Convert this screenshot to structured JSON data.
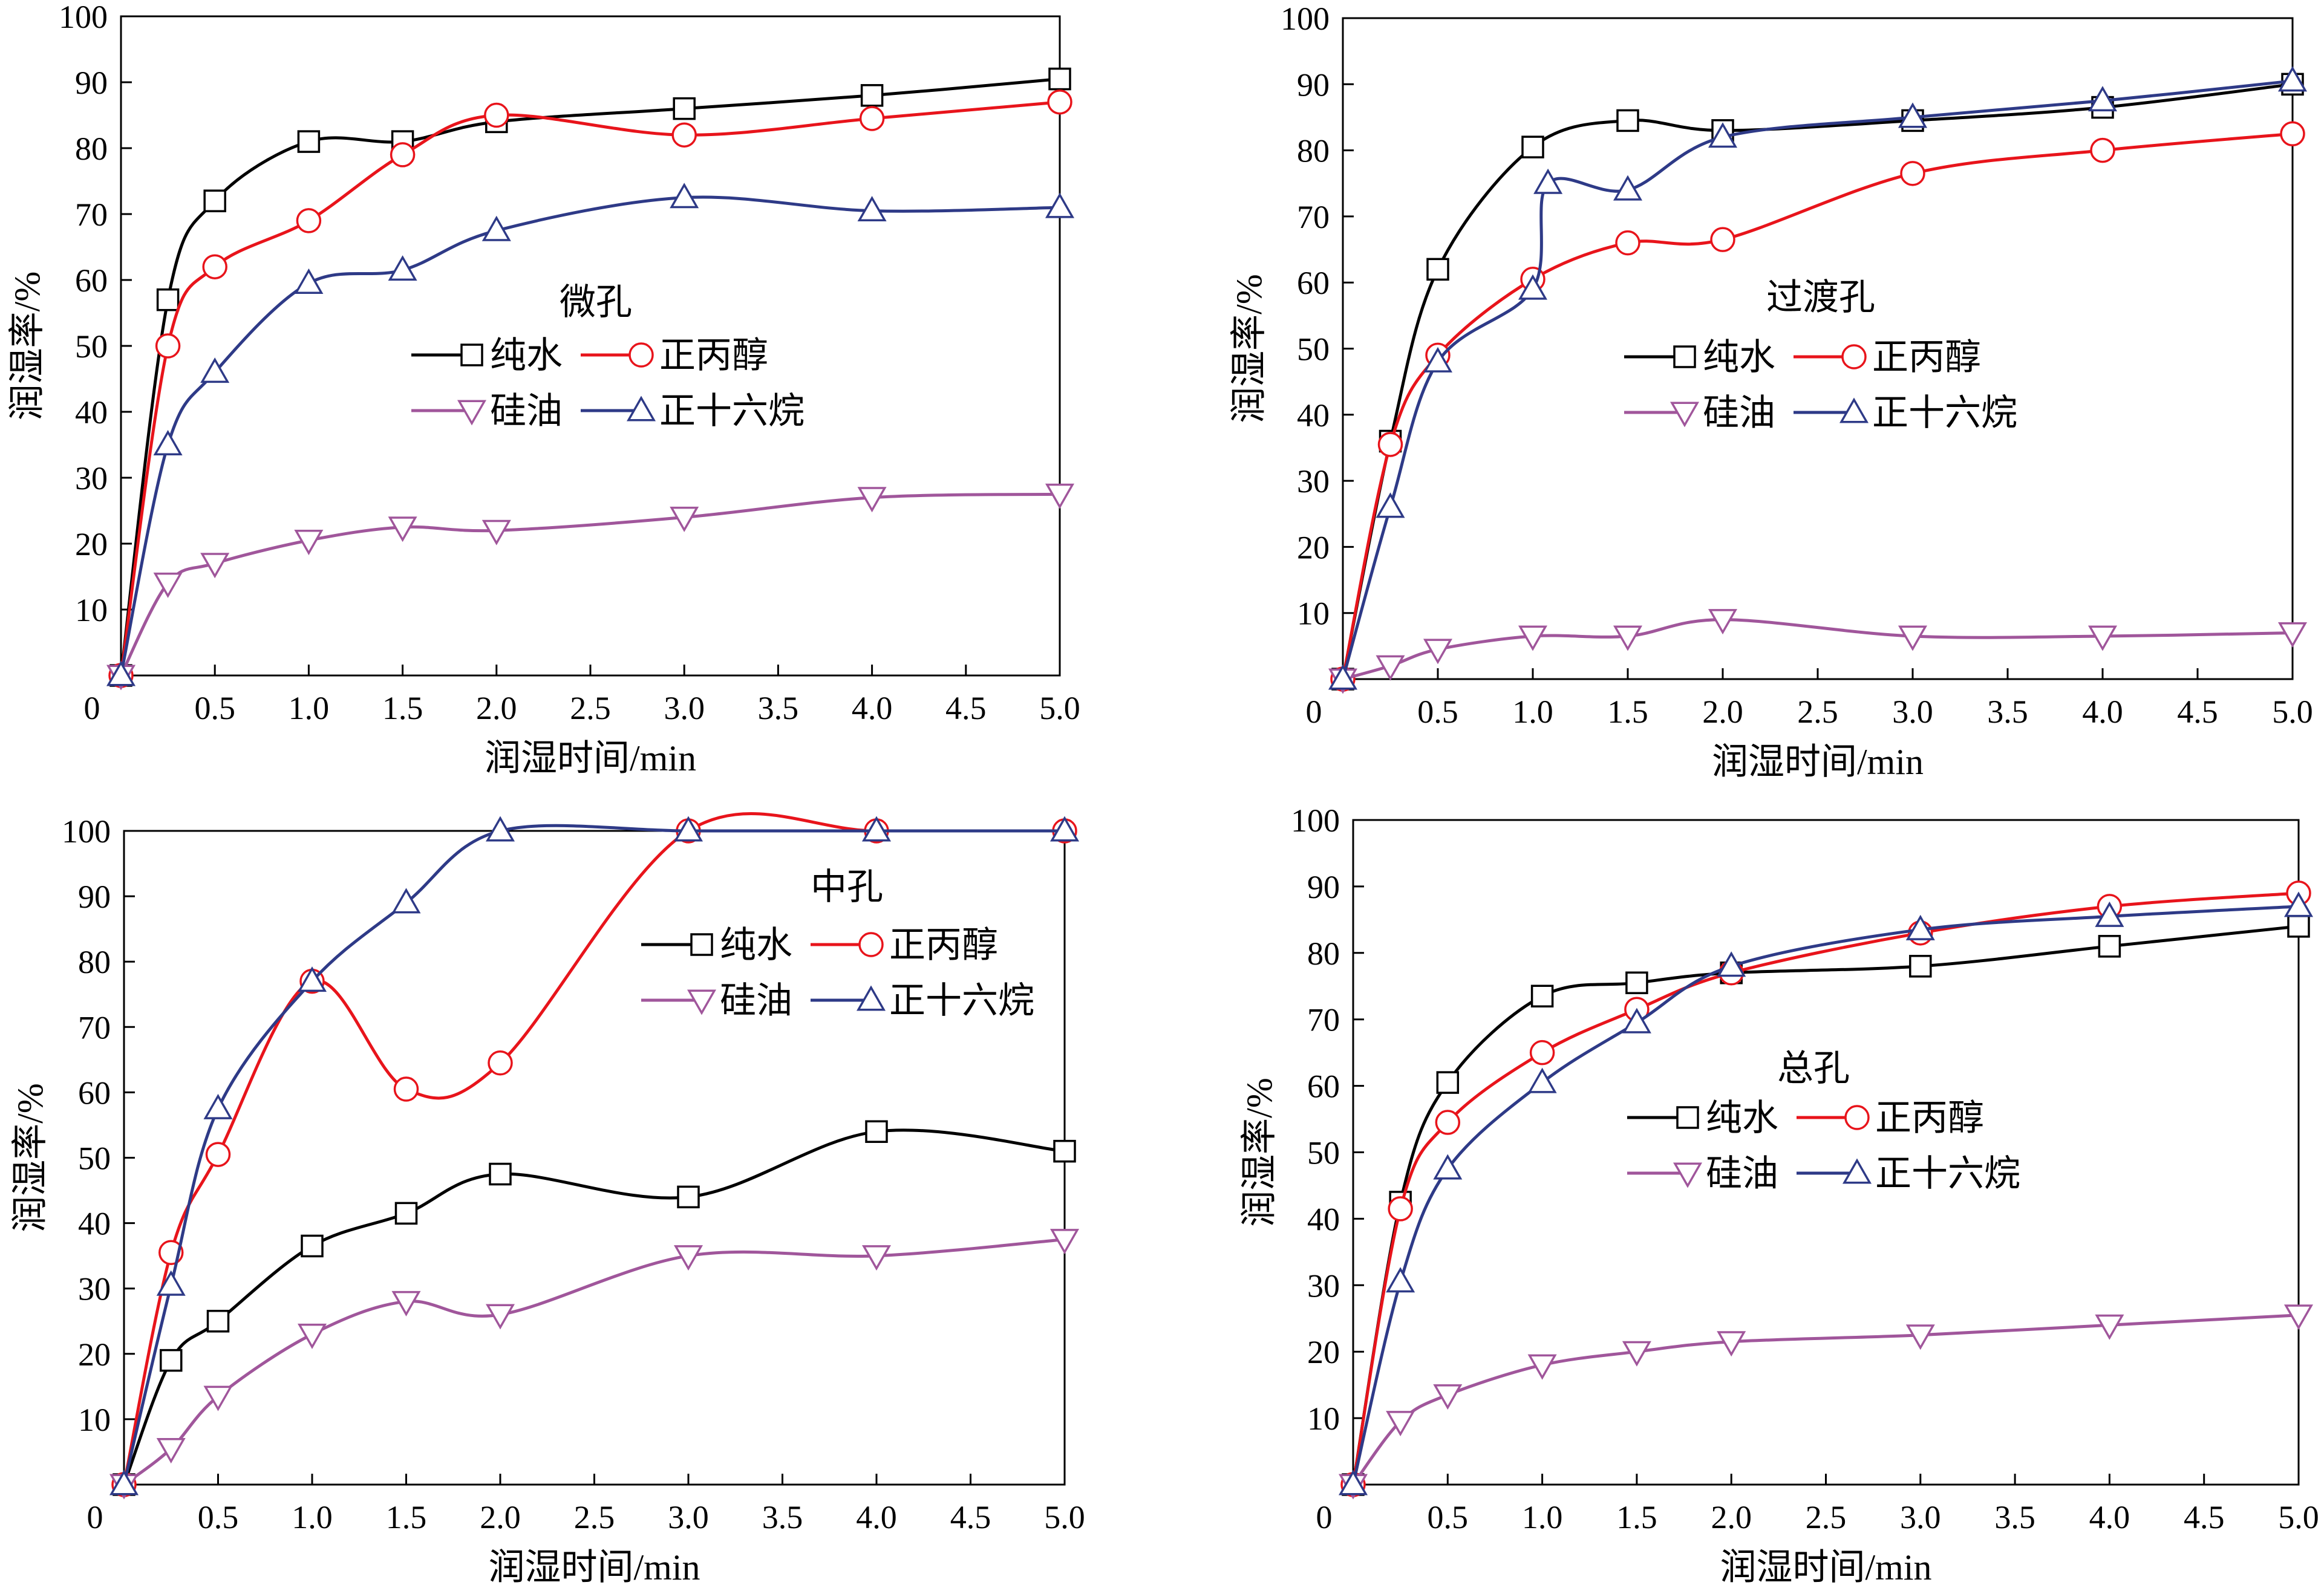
{
  "chart_data": [
    {
      "type": "line",
      "title": "微孔",
      "xlabel": "润湿时间/min",
      "ylabel": "润湿率/%",
      "xlim": [
        0,
        5.0
      ],
      "ylim": [
        0,
        100
      ],
      "xticks": [
        0,
        0.5,
        1.0,
        1.5,
        2.0,
        2.5,
        3.0,
        3.5,
        4.0,
        4.5,
        5.0
      ],
      "xtick_labels": [
        "0",
        "0.5",
        "1.0",
        "1.5",
        "2.0",
        "2.5",
        "3.0",
        "3.5",
        "4.0",
        "4.5",
        "5.0"
      ],
      "yticks": [
        10,
        20,
        30,
        40,
        50,
        60,
        70,
        80,
        90,
        100
      ],
      "ytick_labels": [
        "10",
        "20",
        "30",
        "40",
        "50",
        "60",
        "70",
        "80",
        "90",
        "100"
      ],
      "legend": "center",
      "grid": false,
      "x": [
        0,
        0.25,
        0.5,
        1.0,
        1.5,
        2.0,
        3.0,
        4.0,
        5.0
      ],
      "series": [
        {
          "name": "纯水",
          "marker": "square",
          "color": "#000000",
          "values": [
            0,
            57,
            72,
            81,
            81,
            84,
            86,
            88,
            90.5
          ]
        },
        {
          "name": "正丙醇",
          "marker": "circle",
          "color": "#e8141b",
          "values": [
            0,
            50,
            62,
            69,
            79,
            85,
            82,
            84.5,
            87
          ]
        },
        {
          "name": "硅油",
          "marker": "triangle-down",
          "color": "#a0569b",
          "values": [
            0,
            14,
            17,
            20.5,
            22.5,
            22,
            24,
            27,
            27.5
          ]
        },
        {
          "name": "正十六烷",
          "marker": "triangle-up",
          "color": "#2e3a87",
          "values": [
            0,
            35,
            46,
            59.5,
            61.5,
            67.5,
            72.5,
            70.5,
            71
          ]
        }
      ]
    },
    {
      "type": "line",
      "title": "过渡孔",
      "xlabel": "润湿时间/min",
      "ylabel": "润湿率/%",
      "xlim": [
        0,
        5.0
      ],
      "ylim": [
        0,
        100
      ],
      "xticks": [
        0,
        0.5,
        1.0,
        1.5,
        2.0,
        2.5,
        3.0,
        3.5,
        4.0,
        4.5,
        5.0
      ],
      "xtick_labels": [
        "0",
        "0.5",
        "1.0",
        "1.5",
        "2.0",
        "2.5",
        "3.0",
        "3.5",
        "4.0",
        "4.5",
        "5.0"
      ],
      "yticks": [
        10,
        20,
        30,
        40,
        50,
        60,
        70,
        80,
        90,
        100
      ],
      "ytick_labels": [
        "10",
        "20",
        "30",
        "40",
        "50",
        "60",
        "70",
        "80",
        "90",
        "100"
      ],
      "legend": "center",
      "grid": false,
      "x": [
        0,
        0.25,
        0.5,
        1.0,
        1.5,
        2.0,
        3.0,
        4.0,
        5.0
      ],
      "series": [
        {
          "name": "纯水",
          "marker": "square",
          "color": "#000000",
          "values": [
            0,
            36,
            62,
            80.5,
            84.5,
            83,
            84.5,
            86.5,
            90
          ]
        },
        {
          "name": "正丙醇",
          "marker": "circle",
          "color": "#e8141b",
          "values": [
            0,
            35.5,
            49,
            60.5,
            66,
            66.5,
            76.5,
            80,
            82.5
          ]
        },
        {
          "name": "硅油",
          "marker": "triangle-down",
          "color": "#a0569b",
          "values": [
            0,
            2,
            4.5,
            6.5,
            6.5,
            9,
            6.5,
            6.5,
            7
          ]
        },
        {
          "name": "正十六烷",
          "marker": "triangle-up",
          "color": "#2e3a87",
          "x": [
            0,
            0.25,
            0.5,
            1.0,
            1.08,
            1.5,
            2.0,
            3.0,
            4.0,
            5.0
          ],
          "values": [
            0,
            26,
            48,
            59,
            75,
            74,
            82,
            85,
            87.5,
            90.5
          ]
        }
      ]
    },
    {
      "type": "line",
      "title": "中孔",
      "xlabel": "润湿时间/min",
      "ylabel": "润湿率/%",
      "xlim": [
        0,
        5.0
      ],
      "ylim": [
        0,
        100
      ],
      "xticks": [
        0,
        0.5,
        1.0,
        1.5,
        2.0,
        2.5,
        3.0,
        3.5,
        4.0,
        4.5,
        5.0
      ],
      "xtick_labels": [
        "0",
        "0.5",
        "1.0",
        "1.5",
        "2.0",
        "2.5",
        "3.0",
        "3.5",
        "4.0",
        "4.5",
        "5.0"
      ],
      "yticks": [
        10,
        20,
        30,
        40,
        50,
        60,
        70,
        80,
        90,
        100
      ],
      "ytick_labels": [
        "10",
        "20",
        "30",
        "40",
        "50",
        "60",
        "70",
        "80",
        "90",
        "100"
      ],
      "legend": "top-right",
      "grid": false,
      "x": [
        0,
        0.25,
        0.5,
        1.0,
        1.5,
        2.0,
        3.0,
        4.0,
        5.0
      ],
      "series": [
        {
          "name": "纯水",
          "marker": "square",
          "color": "#000000",
          "values": [
            0,
            19,
            25,
            36.5,
            41.5,
            47.5,
            44,
            54,
            51
          ]
        },
        {
          "name": "正丙醇",
          "marker": "circle",
          "color": "#e8141b",
          "values": [
            0,
            35.5,
            50.5,
            77,
            60.5,
            64.5,
            100,
            100,
            100
          ]
        },
        {
          "name": "硅油",
          "marker": "triangle-down",
          "color": "#a0569b",
          "values": [
            0,
            5.5,
            13.5,
            23,
            28,
            26,
            35,
            35,
            37.5
          ]
        },
        {
          "name": "正十六烷",
          "marker": "triangle-up",
          "color": "#2e3a87",
          "values": [
            0,
            30.5,
            57.5,
            77,
            89,
            100,
            100,
            100,
            100
          ]
        }
      ]
    },
    {
      "type": "line",
      "title": "总孔",
      "xlabel": "润湿时间/min",
      "ylabel": "润湿率/%",
      "xlim": [
        0,
        5.0
      ],
      "ylim": [
        0,
        100
      ],
      "xticks": [
        0,
        0.5,
        1.0,
        1.5,
        2.0,
        2.5,
        3.0,
        3.5,
        4.0,
        4.5,
        5.0
      ],
      "xtick_labels": [
        "0",
        "0.5",
        "1.0",
        "1.5",
        "2.0",
        "2.5",
        "3.0",
        "3.5",
        "4.0",
        "4.5",
        "5.0"
      ],
      "yticks": [
        10,
        20,
        30,
        40,
        50,
        60,
        70,
        80,
        90,
        100
      ],
      "ytick_labels": [
        "10",
        "20",
        "30",
        "40",
        "50",
        "60",
        "70",
        "80",
        "90",
        "100"
      ],
      "legend": "center",
      "grid": false,
      "x": [
        0,
        0.25,
        0.5,
        1.0,
        1.5,
        2.0,
        3.0,
        4.0,
        5.0
      ],
      "series": [
        {
          "name": "纯水",
          "marker": "square",
          "color": "#000000",
          "values": [
            0,
            42.5,
            60.5,
            73.5,
            75.5,
            77,
            78,
            81,
            84
          ]
        },
        {
          "name": "正丙醇",
          "marker": "circle",
          "color": "#e8141b",
          "values": [
            0,
            41.5,
            54.5,
            65,
            71.5,
            77,
            83,
            87,
            89
          ]
        },
        {
          "name": "硅油",
          "marker": "triangle-down",
          "color": "#a0569b",
          "values": [
            0,
            9.5,
            13.5,
            18,
            20,
            21.5,
            22.5,
            24,
            25.5
          ]
        },
        {
          "name": "正十六烷",
          "marker": "triangle-up",
          "color": "#2e3a87",
          "values": [
            0,
            30.5,
            47.5,
            60.5,
            69.5,
            78,
            83.5,
            85.5,
            87
          ]
        }
      ]
    }
  ]
}
